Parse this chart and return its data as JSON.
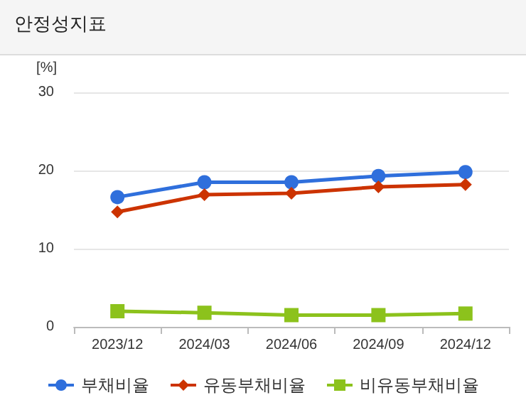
{
  "chart_data": {
    "type": "line",
    "title": "안정성지표",
    "ylabel": "[%]",
    "categories": [
      "2023/12",
      "2024/03",
      "2024/06",
      "2024/09",
      "2024/12"
    ],
    "series": [
      {
        "name": "부채비율",
        "color": "#2f6fdc",
        "marker": "circle",
        "values": [
          16.6,
          18.5,
          18.5,
          19.3,
          19.8
        ]
      },
      {
        "name": "유동부채비율",
        "color": "#cc3300",
        "marker": "diamond",
        "values": [
          14.7,
          16.9,
          17.1,
          17.9,
          18.2
        ]
      },
      {
        "name": "비유동부채비율",
        "color": "#8cc21c",
        "marker": "square",
        "values": [
          2.0,
          1.8,
          1.5,
          1.5,
          1.7
        ]
      }
    ],
    "ylim": [
      0,
      30
    ],
    "yticks": [
      0,
      10,
      20,
      30
    ],
    "grid": "y",
    "legend": "bottom"
  }
}
